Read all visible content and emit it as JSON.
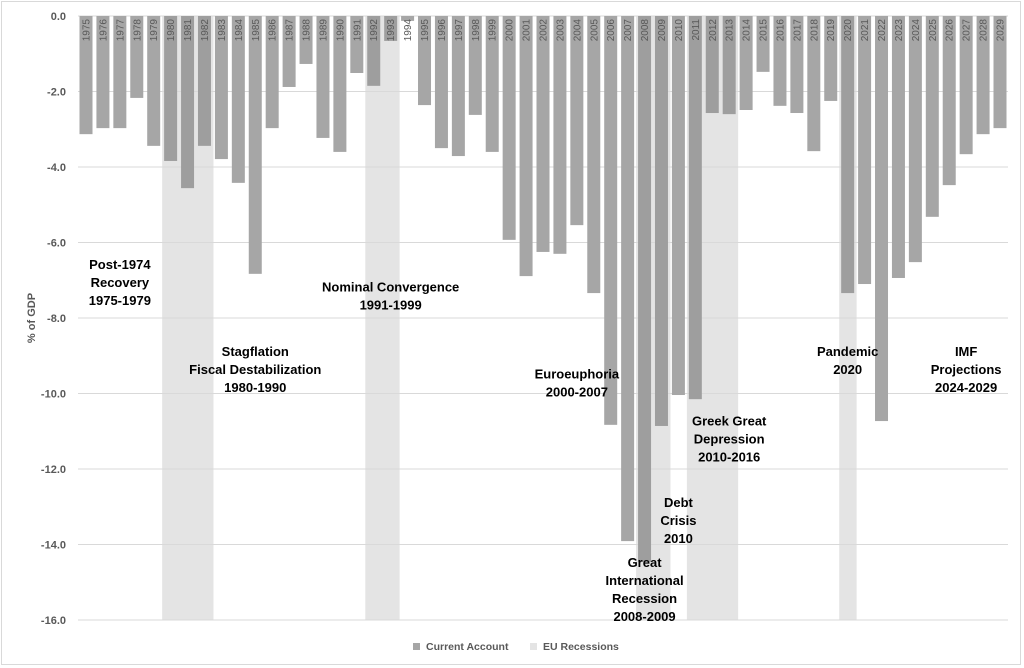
{
  "chart_data": {
    "type": "bar",
    "title": "",
    "xlabel": "",
    "ylabel": "% of GDP",
    "ylim": [
      -16,
      0
    ],
    "yticks": [
      0,
      -2,
      -4,
      -6,
      -8,
      -10,
      -12,
      -14,
      -16
    ],
    "ytick_labels": [
      "0.0",
      "-2.0",
      "-4.0",
      "-6.0",
      "-8.0",
      "-10.0",
      "-12.0",
      "-14.0",
      "-16.0"
    ],
    "grid": true,
    "legend_position": "bottom",
    "categories": [
      "1975",
      "1976",
      "1977",
      "1978",
      "1979",
      "1980",
      "1981",
      "1982",
      "1983",
      "1984",
      "1985",
      "1986",
      "1987",
      "1988",
      "1989",
      "1990",
      "1991",
      "1992",
      "1993",
      "1994",
      "1995",
      "1996",
      "1997",
      "1998",
      "1999",
      "2000",
      "2001",
      "2002",
      "2003",
      "2004",
      "2005",
      "2006",
      "2007",
      "2008",
      "2009",
      "2010",
      "2011",
      "2012",
      "2013",
      "2014",
      "2015",
      "2016",
      "2017",
      "2018",
      "2019",
      "2020",
      "2021",
      "2022",
      "2023",
      "2024",
      "2025",
      "2026",
      "2027",
      "2028",
      "2029"
    ],
    "series": [
      {
        "name": "Current Account",
        "color": "#a6a6a6",
        "values": [
          -3.13,
          -2.97,
          -2.97,
          -2.17,
          -3.44,
          -3.84,
          -4.56,
          -3.44,
          -3.79,
          -4.42,
          -6.83,
          -2.97,
          -1.88,
          -1.27,
          -3.23,
          -3.6,
          -1.51,
          -1.85,
          -0.66,
          -0.13,
          -2.36,
          -3.5,
          -3.71,
          -2.62,
          -3.6,
          -5.93,
          -6.89,
          -6.25,
          -6.3,
          -5.54,
          -7.34,
          -10.83,
          -13.91,
          -14.46,
          -10.86,
          -10.04,
          -10.15,
          -2.57,
          -2.6,
          -2.49,
          -1.48,
          -2.38,
          -2.57,
          -3.58,
          -2.25,
          -7.34,
          -7.1,
          -10.73,
          -6.94,
          -6.52,
          -5.32,
          -4.48,
          -3.66,
          -3.13,
          -2.97
        ]
      },
      {
        "name": "EU Recessions",
        "color": "#e4e4e4",
        "shaded_years": [
          "1980",
          "1981",
          "1982",
          "1992",
          "1993",
          "2008",
          "2009",
          "2011",
          "2012",
          "2013",
          "2020"
        ],
        "value": -16
      }
    ],
    "annotations": [
      {
        "lines": [
          "Post-1974",
          "Recovery",
          "1975-1979"
        ],
        "x_year": "1977",
        "y": -6.7
      },
      {
        "lines": [
          "Stagflation",
          "Fiscal Destabilization",
          "1980-1990"
        ],
        "x_year": "1985",
        "y": -9.0
      },
      {
        "lines": [
          "Nominal Convergence",
          "1991-1999"
        ],
        "x_year": "1993",
        "y": -7.3
      },
      {
        "lines": [
          "Euroeuphoria",
          "2000-2007"
        ],
        "x_year": "2004",
        "y": -9.6
      },
      {
        "lines": [
          "Great",
          "International",
          "Recession",
          "2008-2009"
        ],
        "x_year": "2008",
        "y": -14.6
      },
      {
        "lines": [
          "Debt",
          "Crisis",
          "2010"
        ],
        "x_year": "2010",
        "y": -13.0
      },
      {
        "lines": [
          "Greek Great",
          "Depression",
          "2010-2016"
        ],
        "x_year": "2013",
        "y": -10.85
      },
      {
        "lines": [
          "Pandemic",
          "2020"
        ],
        "x_year": "2020",
        "y": -9.0
      },
      {
        "lines": [
          "IMF",
          "Projections",
          "2024-2029"
        ],
        "x_year": "2027",
        "y": -9.0
      }
    ]
  },
  "legend": {
    "items": [
      {
        "label": "Current Account",
        "color": "#a6a6a6"
      },
      {
        "label": "EU Recessions",
        "color": "#e4e4e4"
      }
    ]
  }
}
